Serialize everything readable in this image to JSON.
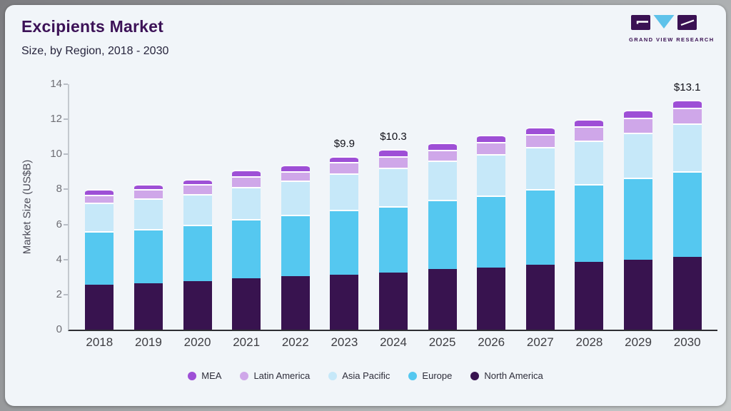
{
  "logo": {
    "text": "GRAND VIEW RESEARCH"
  },
  "colors": {
    "card_bg": "#f1f5f9",
    "title": "#3c1257",
    "axis_line": "#c4c9cf",
    "baseline": "#2e2e33",
    "logo_purple": "#3a1153",
    "logo_blue": "#5ec2ea"
  },
  "chart_data": {
    "type": "bar",
    "stacked": true,
    "title": "Excipients Market",
    "subtitle": "Size, by Region, 2018 - 2030",
    "x": [
      "2018",
      "2019",
      "2020",
      "2021",
      "2022",
      "2023",
      "2024",
      "2025",
      "2026",
      "2027",
      "2028",
      "2029",
      "2030"
    ],
    "series": [
      {
        "name": "North America",
        "color": "#38134f",
        "values": [
          2.55,
          2.65,
          2.75,
          2.95,
          3.05,
          3.15,
          3.25,
          3.45,
          3.55,
          3.7,
          3.85,
          4.0,
          4.15
        ]
      },
      {
        "name": "Europe",
        "color": "#55c8f0",
        "values": [
          3.05,
          3.1,
          3.25,
          3.35,
          3.5,
          3.7,
          3.8,
          3.95,
          4.1,
          4.3,
          4.45,
          4.65,
          4.9
        ]
      },
      {
        "name": "Asia Pacific",
        "color": "#c6e8f9",
        "values": [
          1.65,
          1.75,
          1.75,
          1.85,
          1.95,
          2.05,
          2.2,
          2.25,
          2.35,
          2.4,
          2.5,
          2.6,
          2.7
        ]
      },
      {
        "name": "Latin America",
        "color": "#cfa7e9",
        "values": [
          0.45,
          0.5,
          0.55,
          0.6,
          0.55,
          0.65,
          0.65,
          0.62,
          0.72,
          0.75,
          0.8,
          0.85,
          0.9
        ]
      },
      {
        "name": "MEA",
        "color": "#9e4fd6",
        "values": [
          0.3,
          0.3,
          0.3,
          0.35,
          0.35,
          0.35,
          0.4,
          0.4,
          0.38,
          0.4,
          0.4,
          0.42,
          0.45
        ]
      }
    ],
    "totals_labeled": {
      "2023": "$9.9",
      "2024": "$10.3",
      "2030": "$13.1"
    },
    "annotations": [
      {
        "x": "2023",
        "label": "$9.9"
      },
      {
        "x": "2024",
        "label": "$10.3"
      },
      {
        "x": "2030",
        "label": "$13.1"
      }
    ],
    "legend_order": [
      "MEA",
      "Latin America",
      "Asia Pacific",
      "Europe",
      "North America"
    ],
    "legend_position": "bottom",
    "xlabel": "",
    "ylabel": "Market Size (US$B)",
    "ylim": [
      0,
      14
    ],
    "yticks": [
      0,
      2,
      4,
      6,
      8,
      10,
      12,
      14
    ],
    "grid": false
  }
}
